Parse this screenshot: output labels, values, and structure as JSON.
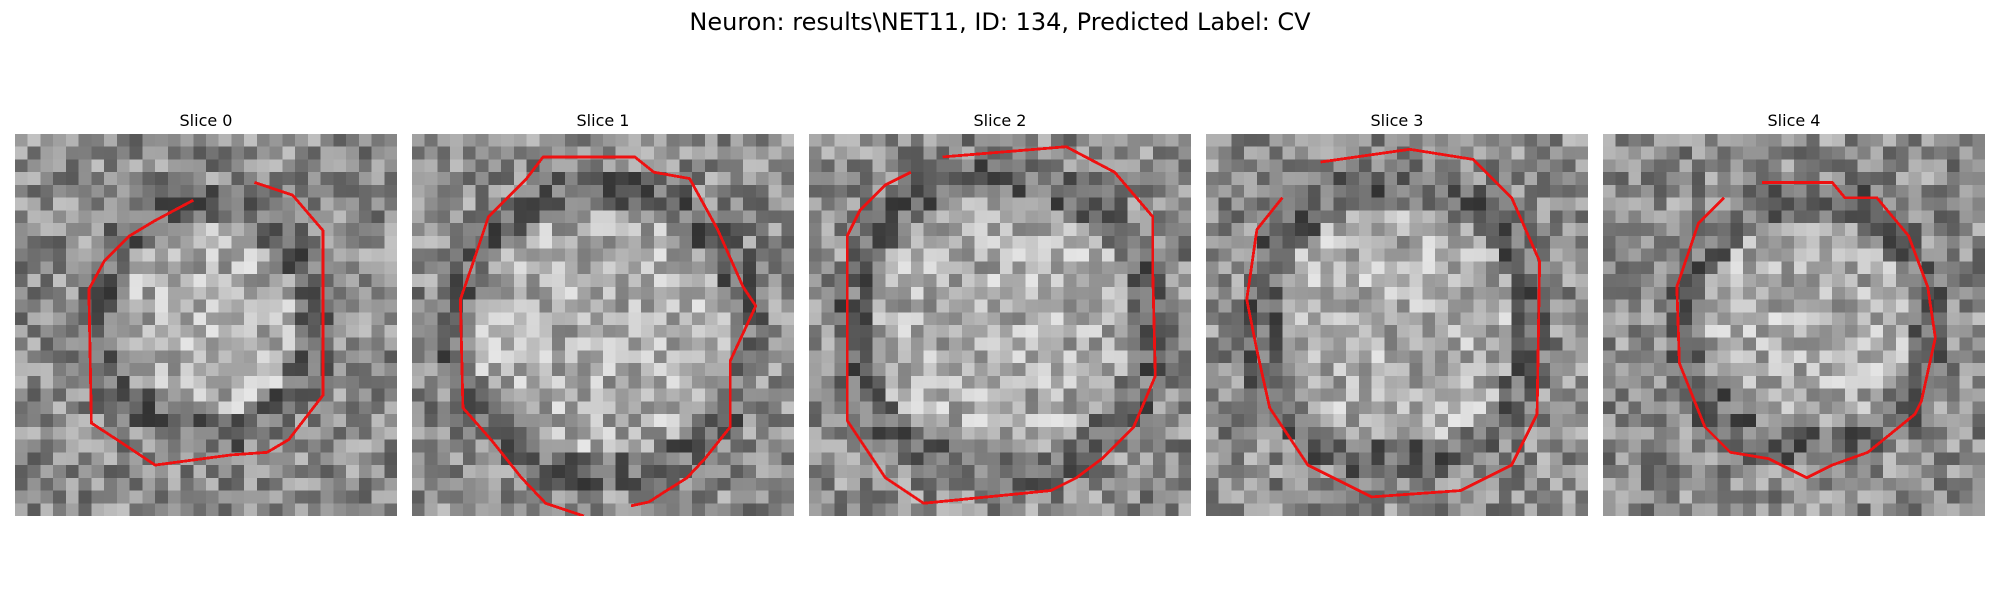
{
  "title": "Neuron: results\\NET11, ID: 134, Predicted Label: CV",
  "outline_color": "#ee1111",
  "panels": [
    {
      "label": "Slice 0"
    },
    {
      "label": "Slice 1"
    },
    {
      "label": "Slice 2"
    },
    {
      "label": "Slice 3"
    },
    {
      "label": "Slice 4"
    }
  ]
}
